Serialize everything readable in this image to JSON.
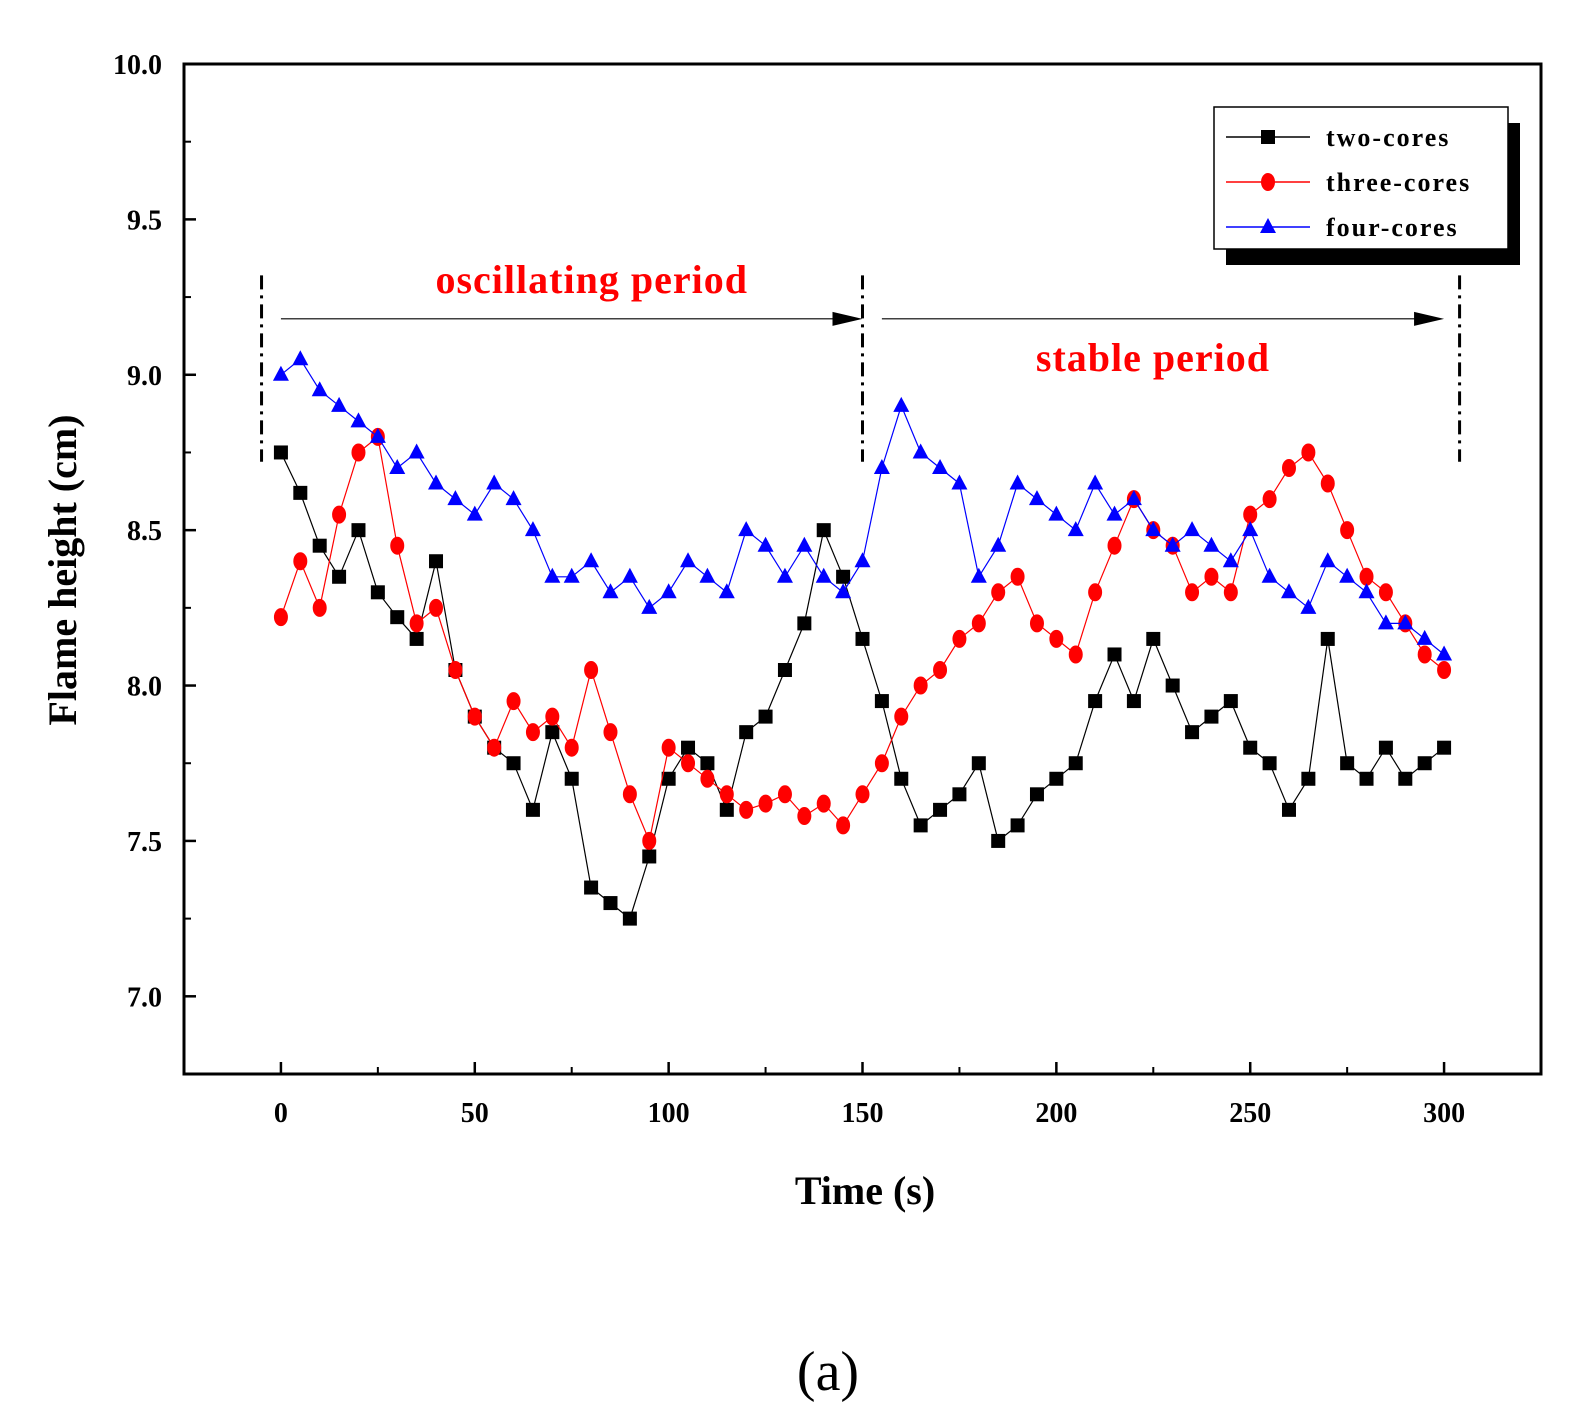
{
  "chart_data": {
    "type": "line",
    "title": "",
    "xlabel": "Time (s)",
    "ylabel": "Flame height (cm)",
    "xlim": [
      -25,
      325
    ],
    "ylim": [
      6.75,
      10.0
    ],
    "xticks": [
      0,
      50,
      100,
      150,
      200,
      250,
      300
    ],
    "yticks": [
      7.0,
      7.5,
      8.0,
      8.5,
      9.0,
      9.5,
      10.0
    ],
    "xtick_labels": [
      "0",
      "50",
      "100",
      "150",
      "200",
      "250",
      "300"
    ],
    "ytick_labels": [
      "7.0",
      "7.5",
      "8.0",
      "8.5",
      "9.0",
      "9.5",
      "10.0"
    ],
    "grid": false,
    "legend_position": "top-right",
    "caption": "(a)",
    "annotations": [
      {
        "text": "oscillating period",
        "x_start": 0,
        "x_end": 150,
        "y": 9.18
      },
      {
        "text": "stable period",
        "x_start": 155,
        "x_end": 300,
        "y": 9.18
      }
    ],
    "period_dividers": [
      -5,
      150,
      304
    ],
    "series": [
      {
        "name": "two-cores",
        "color": "#000000",
        "marker": "square",
        "x": [
          0,
          5,
          10,
          15,
          20,
          25,
          30,
          35,
          40,
          45,
          50,
          55,
          60,
          65,
          70,
          75,
          80,
          85,
          90,
          95,
          100,
          105,
          110,
          115,
          120,
          125,
          130,
          135,
          140,
          145,
          150,
          155,
          160,
          165,
          170,
          175,
          180,
          185,
          190,
          195,
          200,
          205,
          210,
          215,
          220,
          225,
          230,
          235,
          240,
          245,
          250,
          255,
          260,
          265,
          270,
          275,
          280,
          285,
          290,
          295,
          300
        ],
        "y": [
          8.75,
          8.62,
          8.45,
          8.35,
          8.5,
          8.3,
          8.22,
          8.15,
          8.4,
          8.05,
          7.9,
          7.8,
          7.75,
          7.6,
          7.85,
          7.7,
          7.35,
          7.3,
          7.25,
          7.45,
          7.7,
          7.8,
          7.75,
          7.6,
          7.85,
          7.9,
          8.05,
          8.2,
          8.5,
          8.35,
          8.15,
          7.95,
          7.7,
          7.55,
          7.6,
          7.65,
          7.75,
          7.5,
          7.55,
          7.65,
          7.7,
          7.75,
          7.95,
          8.1,
          7.95,
          8.15,
          8.0,
          7.85,
          7.9,
          7.95,
          7.8,
          7.75,
          7.6,
          7.7,
          8.15,
          7.75,
          7.7,
          7.8,
          7.7,
          7.75,
          7.8
        ]
      },
      {
        "name": "three-cores",
        "color": "#ff0000",
        "marker": "circle",
        "x": [
          0,
          5,
          10,
          15,
          20,
          25,
          30,
          35,
          40,
          45,
          50,
          55,
          60,
          65,
          70,
          75,
          80,
          85,
          90,
          95,
          100,
          105,
          110,
          115,
          120,
          125,
          130,
          135,
          140,
          145,
          150,
          155,
          160,
          165,
          170,
          175,
          180,
          185,
          190,
          195,
          200,
          205,
          210,
          215,
          220,
          225,
          230,
          235,
          240,
          245,
          250,
          255,
          260,
          265,
          270,
          275,
          280,
          285,
          290,
          295,
          300
        ],
        "y": [
          8.22,
          8.4,
          8.25,
          8.55,
          8.75,
          8.8,
          8.45,
          8.2,
          8.25,
          8.05,
          7.9,
          7.8,
          7.95,
          7.85,
          7.9,
          7.8,
          8.05,
          7.85,
          7.65,
          7.5,
          7.8,
          7.75,
          7.7,
          7.65,
          7.6,
          7.62,
          7.65,
          7.58,
          7.62,
          7.55,
          7.65,
          7.75,
          7.9,
          8.0,
          8.05,
          8.15,
          8.2,
          8.3,
          8.35,
          8.2,
          8.15,
          8.1,
          8.3,
          8.45,
          8.6,
          8.5,
          8.45,
          8.3,
          8.35,
          8.3,
          8.55,
          8.6,
          8.7,
          8.75,
          8.65,
          8.5,
          8.35,
          8.3,
          8.2,
          8.1,
          8.05
        ]
      },
      {
        "name": "four-cores",
        "color": "#0000ff",
        "marker": "triangle",
        "x": [
          0,
          5,
          10,
          15,
          20,
          25,
          30,
          35,
          40,
          45,
          50,
          55,
          60,
          65,
          70,
          75,
          80,
          85,
          90,
          95,
          100,
          105,
          110,
          115,
          120,
          125,
          130,
          135,
          140,
          145,
          150,
          155,
          160,
          165,
          170,
          175,
          180,
          185,
          190,
          195,
          200,
          205,
          210,
          215,
          220,
          225,
          230,
          235,
          240,
          245,
          250,
          255,
          260,
          265,
          270,
          275,
          280,
          285,
          290,
          295,
          300
        ],
        "y": [
          9.0,
          9.05,
          8.95,
          8.9,
          8.85,
          8.8,
          8.7,
          8.75,
          8.65,
          8.6,
          8.55,
          8.65,
          8.6,
          8.5,
          8.35,
          8.35,
          8.4,
          8.3,
          8.35,
          8.25,
          8.3,
          8.4,
          8.35,
          8.3,
          8.5,
          8.45,
          8.35,
          8.45,
          8.35,
          8.3,
          8.4,
          8.7,
          8.9,
          8.75,
          8.7,
          8.65,
          8.35,
          8.45,
          8.65,
          8.6,
          8.55,
          8.5,
          8.65,
          8.55,
          8.6,
          8.5,
          8.45,
          8.5,
          8.45,
          8.4,
          8.5,
          8.35,
          8.3,
          8.25,
          8.4,
          8.35,
          8.3,
          8.2,
          8.2,
          8.15,
          8.1
        ]
      }
    ]
  }
}
